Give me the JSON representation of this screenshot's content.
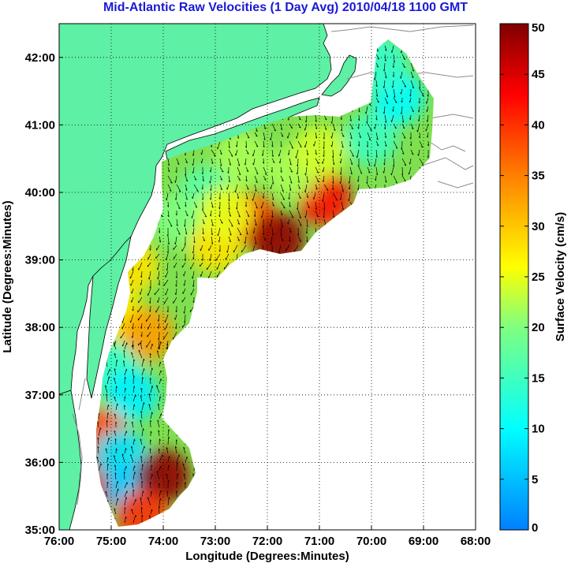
{
  "title": "Mid-Atlantic Raw Velocities (1 Day Avg) 2010/04/18 1100 GMT",
  "colors": {
    "land": "#5ef0a4",
    "title": "#1a1ad6",
    "grid": "#000000",
    "contour": "#8c8c8c"
  },
  "map": {
    "xlabel": "Longitude (Degrees:Minutes)",
    "ylabel": "Latitude (Degrees:Minutes)",
    "lon_range": [
      -76,
      -68
    ],
    "lat_range": [
      35,
      42.5
    ],
    "lon_ticks": [
      {
        "value": -76,
        "label": "76:00"
      },
      {
        "value": -75,
        "label": "75:00"
      },
      {
        "value": -74,
        "label": "74:00"
      },
      {
        "value": -73,
        "label": "73:00"
      },
      {
        "value": -72,
        "label": "72:00"
      },
      {
        "value": -71,
        "label": "71:00"
      },
      {
        "value": -70,
        "label": "70:00"
      },
      {
        "value": -69,
        "label": "69:00"
      },
      {
        "value": -68,
        "label": "68:00"
      }
    ],
    "lat_ticks": [
      {
        "value": 35,
        "label": "35:00"
      },
      {
        "value": 36,
        "label": "36:00"
      },
      {
        "value": 37,
        "label": "37:00"
      },
      {
        "value": 38,
        "label": "38:00"
      },
      {
        "value": 39,
        "label": "39:00"
      },
      {
        "value": 40,
        "label": "40:00"
      },
      {
        "value": 41,
        "label": "41:00"
      },
      {
        "value": 42,
        "label": "42:00"
      }
    ],
    "grid": "dotted"
  },
  "colorbar": {
    "label": "Surface Velocity (cm/s)",
    "range": [
      0,
      50
    ],
    "ticks": [
      {
        "value": 0,
        "label": "0"
      },
      {
        "value": 5,
        "label": "5"
      },
      {
        "value": 10,
        "label": "10"
      },
      {
        "value": 15,
        "label": "15"
      },
      {
        "value": 20,
        "label": "20"
      },
      {
        "value": 25,
        "label": "25"
      },
      {
        "value": 30,
        "label": "30"
      },
      {
        "value": 35,
        "label": "35"
      },
      {
        "value": 40,
        "label": "40"
      },
      {
        "value": 45,
        "label": "45"
      },
      {
        "value": 50,
        "label": "50"
      }
    ],
    "colormap": "jet"
  },
  "chart_data": {
    "type": "heatmap",
    "x_range": [
      -76,
      -68
    ],
    "y_range": [
      35,
      42.5
    ],
    "value_range": [
      0,
      50
    ],
    "region_blobs": [
      {
        "lon": -72.3,
        "lat": 39.6,
        "value": 38
      },
      {
        "lon": -71.8,
        "lat": 39.3,
        "value": 49
      },
      {
        "lon": -70.9,
        "lat": 39.9,
        "value": 42
      },
      {
        "lon": -71.5,
        "lat": 40.3,
        "value": 22
      },
      {
        "lon": -70.0,
        "lat": 40.8,
        "value": 15
      },
      {
        "lon": -69.5,
        "lat": 41.4,
        "value": 10
      },
      {
        "lon": -69.8,
        "lat": 41.9,
        "value": 14
      },
      {
        "lon": -72.5,
        "lat": 40.5,
        "value": 22
      },
      {
        "lon": -73.2,
        "lat": 40.0,
        "value": 17
      },
      {
        "lon": -73.7,
        "lat": 39.6,
        "value": 20
      },
      {
        "lon": -73.0,
        "lat": 39.2,
        "value": 28
      },
      {
        "lon": -74.6,
        "lat": 38.9,
        "value": 28
      },
      {
        "lon": -74.9,
        "lat": 38.2,
        "value": 27
      },
      {
        "lon": -74.3,
        "lat": 37.9,
        "value": 33
      },
      {
        "lon": -75.0,
        "lat": 37.4,
        "value": 14
      },
      {
        "lon": -74.6,
        "lat": 37.0,
        "value": 9
      },
      {
        "lon": -75.2,
        "lat": 36.4,
        "value": 38
      },
      {
        "lon": -75.3,
        "lat": 35.7,
        "value": 45
      },
      {
        "lon": -74.8,
        "lat": 36.1,
        "value": 8
      },
      {
        "lon": -74.6,
        "lat": 35.6,
        "value": 6
      },
      {
        "lon": -74.0,
        "lat": 35.8,
        "value": 49
      },
      {
        "lon": -74.4,
        "lat": 35.2,
        "value": 40
      },
      {
        "lon": -71.0,
        "lat": 40.6,
        "value": 24
      },
      {
        "lon": -72.8,
        "lat": 39.7,
        "value": 25
      }
    ]
  }
}
